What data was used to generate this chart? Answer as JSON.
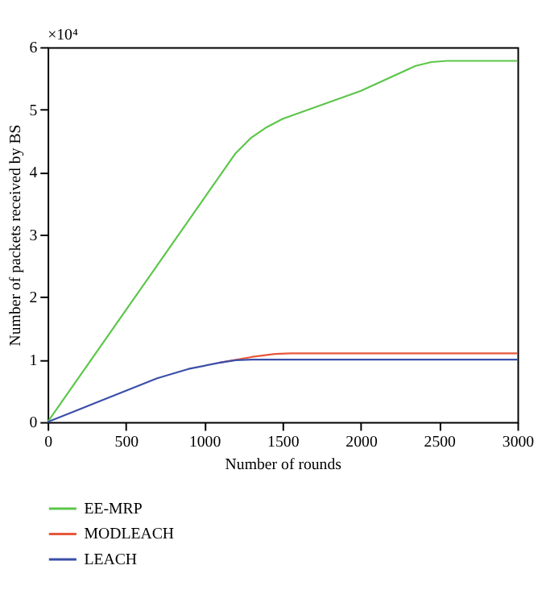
{
  "chart_data": {
    "type": "line",
    "xlabel": "Number of rounds",
    "ylabel": "Number of packets received by BS",
    "annotations": [
      "×10⁴"
    ],
    "xlim": [
      0,
      3000
    ],
    "xticks": [
      0,
      500,
      1000,
      1500,
      2000,
      2500,
      3000
    ],
    "ylim": [
      0,
      6
    ],
    "yticks": [
      0,
      1,
      2,
      3,
      4,
      5,
      6
    ],
    "grid": false,
    "legend": "bottom",
    "line_style": "solid",
    "marker": "none",
    "series": [
      {
        "name": "EE-MRP",
        "color": "#5cc64a",
        "x": [
          0,
          1200,
          1300,
          1400,
          1500,
          2000,
          2350,
          2450,
          2550,
          3000
        ],
        "values": [
          0,
          4.3,
          4.55,
          4.72,
          4.85,
          5.3,
          5.7,
          5.76,
          5.78,
          5.78
        ]
      },
      {
        "name": "MODLEACH",
        "color": "#e8573a",
        "x": [
          1100,
          1300,
          1450,
          1550,
          3000
        ],
        "values": [
          0.95,
          1.04,
          1.09,
          1.1,
          1.1
        ]
      },
      {
        "name": "LEACH",
        "color": "#3b4fa8",
        "x": [
          0,
          300,
          500,
          700,
          900,
          1100,
          1200,
          1300,
          3000
        ],
        "values": [
          0,
          0.3,
          0.5,
          0.7,
          0.85,
          0.95,
          0.99,
          1.0,
          1.0
        ]
      }
    ]
  }
}
